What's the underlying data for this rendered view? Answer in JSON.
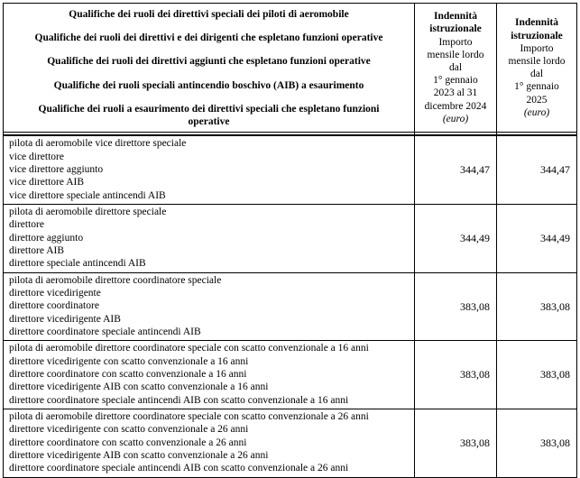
{
  "table": {
    "header": {
      "qualification_groups": [
        "Qualifiche dei ruoli dei direttivi speciali dei piloti di aeromobile",
        "Qualifiche dei ruoli dei direttivi e dei dirigenti che espletano funzioni operative",
        "Qualifiche dei ruoli dei direttivi aggiunti che espletano funzioni operative",
        "Qualifiche dei ruoli speciali antincendio boschivo (AIB) a esaurimento",
        "Qualifiche dei ruoli a esaurimento dei direttivi speciali che espletano funzioni\noperative"
      ],
      "col_2023_2024": {
        "title": "Indennità\nistruzionale",
        "subtitle": "Importo\nmensile lordo\ndal\n1° gennaio\n2023 al 31\ndicembre 2024",
        "unit": "(euro)"
      },
      "col_2025": {
        "title": "Indennità\nistruzionale",
        "subtitle": "Importo\nmensile lordo\ndal\n1° gennaio\n2025",
        "unit": "(euro)"
      }
    },
    "rows": [
      {
        "qualifications": "pilota di aeromobile vice direttore speciale\nvice direttore\nvice direttore aggiunto\nvice direttore AIB\nvice direttore speciale antincendi AIB",
        "value_2023_2024": "344,47",
        "value_2025": "344,47"
      },
      {
        "qualifications": "pilota di aeromobile direttore speciale\ndirettore\ndirettore aggiunto\ndirettore AIB\ndirettore speciale antincendi AIB",
        "value_2023_2024": "344,49",
        "value_2025": "344,49"
      },
      {
        "qualifications": "pilota di aeromobile direttore coordinatore speciale\ndirettore vicedirigente\ndirettore coordinatore\ndirettore vicedirigente AIB\ndirettore coordinatore speciale antincendi AIB",
        "value_2023_2024": "383,08",
        "value_2025": "383,08"
      },
      {
        "qualifications": "pilota di aeromobile direttore coordinatore speciale con scatto convenzionale a 16 anni\ndirettore vicedirigente con scatto convenzionale a 16 anni\ndirettore coordinatore con scatto convenzionale a 16 anni\ndirettore vicedirigente AIB con scatto convenzionale a 16 anni\ndirettore coordinatore speciale antincendi AIB con scatto convenzionale a 16 anni",
        "value_2023_2024": "383,08",
        "value_2025": "383,08"
      },
      {
        "qualifications": "pilota di aeromobile direttore coordinatore speciale con scatto convenzionale a 26 anni\ndirettore vicedirigente con scatto convenzionale a 26 anni\ndirettore coordinatore con scatto convenzionale a 26 anni\ndirettore vicedirigente AIB con scatto convenzionale a 26 anni\ndirettore coordinatore speciale antincendi AIB con scatto convenzionale a 26 anni",
        "value_2023_2024": "383,08",
        "value_2025": "383,08"
      }
    ]
  }
}
